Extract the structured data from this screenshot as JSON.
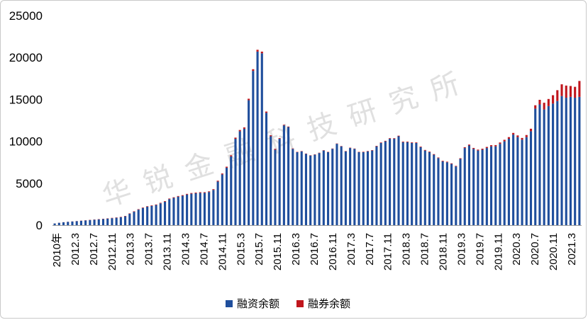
{
  "chart_data": {
    "type": "bar",
    "stacked": true,
    "title": "",
    "xlabel": "",
    "ylabel": "",
    "ylim": [
      0,
      25000
    ],
    "yticks": [
      0,
      5000,
      10000,
      15000,
      20000,
      25000
    ],
    "grid": false,
    "legend_position": "bottom",
    "watermark": "华 锐 金 融 科 技 研 究 所",
    "x_tick_labels": [
      "2010年",
      "2012.3",
      "2012.7",
      "2012.11",
      "2013.3",
      "2013.7",
      "2013.11",
      "2014.3",
      "2014.7",
      "2014.11",
      "2015.3",
      "2015.7",
      "2015.11",
      "2016.3",
      "2016.7",
      "2016.11",
      "2017.3",
      "2017.7",
      "2017.11",
      "2018.3",
      "2018.7",
      "2018.11",
      "2019.3",
      "2019.7",
      "2019.11",
      "2020.3",
      "2020.7",
      "2020.11",
      "2021.3"
    ],
    "series": [
      {
        "name": "融资余额",
        "color": "#1f4e9c",
        "values": [
          200,
          280,
          340,
          390,
          430,
          470,
          520,
          560,
          610,
          650,
          690,
          730,
          780,
          830,
          880,
          950,
          1050,
          1350,
          1600,
          1850,
          2050,
          2200,
          2300,
          2400,
          2600,
          2800,
          3100,
          3250,
          3400,
          3500,
          3650,
          3750,
          3800,
          3850,
          3850,
          3950,
          4200,
          5200,
          6050,
          6850,
          8200,
          10300,
          11200,
          11500,
          14900,
          18400,
          20700,
          20500,
          13400,
          10600,
          9000,
          10300,
          11900,
          11700,
          9100,
          8700,
          8800,
          8500,
          8300,
          8400,
          8600,
          8900,
          8700,
          9100,
          9700,
          9400,
          8800,
          9200,
          9100,
          8700,
          8700,
          8800,
          8900,
          9400,
          9800,
          10000,
          10300,
          10300,
          10600,
          9900,
          9900,
          9800,
          9800,
          9300,
          8900,
          8700,
          8400,
          8000,
          7600,
          7500,
          7300,
          7000,
          7900,
          9200,
          9500,
          9100,
          8900,
          9000,
          9200,
          9400,
          9400,
          9700,
          10000,
          10300,
          10800,
          10500,
          10200,
          10500,
          11200,
          13900,
          14400,
          13800,
          14200,
          14500,
          14800,
          15400,
          15200,
          15300,
          15200,
          15300
        ]
      },
      {
        "name": "融券余额",
        "color": "#c0161d",
        "values": [
          5,
          8,
          10,
          12,
          15,
          18,
          20,
          22,
          25,
          28,
          30,
          32,
          35,
          38,
          40,
          42,
          45,
          48,
          50,
          52,
          55,
          58,
          60,
          62,
          65,
          68,
          70,
          72,
          75,
          78,
          80,
          80,
          80,
          80,
          80,
          80,
          90,
          100,
          110,
          120,
          130,
          140,
          150,
          160,
          180,
          200,
          220,
          200,
          150,
          120,
          100,
          80,
          70,
          60,
          50,
          40,
          40,
          40,
          40,
          40,
          40,
          40,
          40,
          40,
          40,
          40,
          40,
          40,
          40,
          40,
          50,
          50,
          50,
          60,
          60,
          60,
          70,
          70,
          70,
          70,
          70,
          70,
          70,
          70,
          70,
          70,
          70,
          70,
          70,
          70,
          70,
          70,
          80,
          100,
          110,
          110,
          110,
          120,
          130,
          140,
          150,
          160,
          180,
          200,
          200,
          200,
          200,
          250,
          300,
          400,
          550,
          800,
          850,
          1000,
          1300,
          1400,
          1450,
          1300,
          1300,
          1900
        ]
      }
    ]
  },
  "legend": {
    "items": [
      {
        "label": "融资余额",
        "color": "#1f4e9c"
      },
      {
        "label": "融券余额",
        "color": "#c0161d"
      }
    ]
  }
}
